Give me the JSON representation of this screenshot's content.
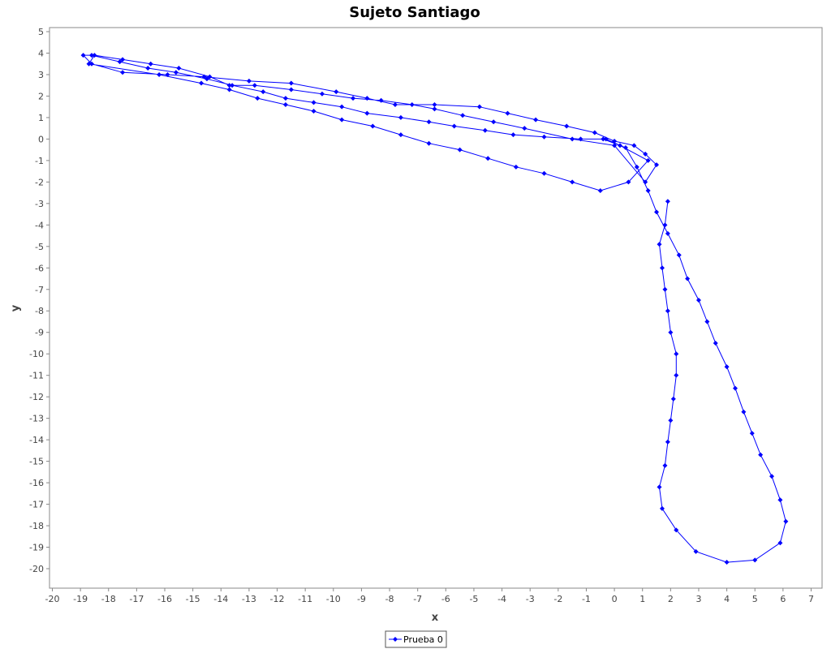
{
  "chart_data": {
    "type": "line",
    "title": "Sujeto Santiago",
    "xlabel": "x",
    "ylabel": "y",
    "xlim": [
      -20,
      7
    ],
    "ylim": [
      -21,
      5
    ],
    "xticks": [
      -20,
      -19,
      -18,
      -17,
      -16,
      -15,
      -14,
      -13,
      -12,
      -11,
      -10,
      -9,
      -8,
      -7,
      -6,
      -5,
      -4,
      -3,
      -2,
      -1,
      0,
      1,
      2,
      3,
      4,
      5,
      6,
      7
    ],
    "yticks": [
      5,
      4,
      3,
      2,
      1,
      0,
      -1,
      -2,
      -3,
      -4,
      -5,
      -6,
      -7,
      -8,
      -9,
      -10,
      -11,
      -12,
      -13,
      -14,
      -15,
      -16,
      -17,
      -18,
      -19,
      -20
    ],
    "grid": false,
    "legend_position": "bottom-center",
    "series": [
      {
        "name": "Prueba 0",
        "color": "#0000ff",
        "marker": "diamond",
        "points": [
          [
            1.9,
            -2.9
          ],
          [
            1.8,
            -4.0
          ],
          [
            1.6,
            -4.9
          ],
          [
            1.7,
            -6.0
          ],
          [
            1.8,
            -7.0
          ],
          [
            1.9,
            -8.0
          ],
          [
            2.0,
            -9.0
          ],
          [
            2.2,
            -10.0
          ],
          [
            2.2,
            -11.0
          ],
          [
            2.1,
            -12.1
          ],
          [
            2.0,
            -13.1
          ],
          [
            1.9,
            -14.1
          ],
          [
            1.8,
            -15.2
          ],
          [
            1.6,
            -16.2
          ],
          [
            1.7,
            -17.2
          ],
          [
            2.2,
            -18.2
          ],
          [
            2.9,
            -19.2
          ],
          [
            4.0,
            -19.7
          ],
          [
            5.0,
            -19.6
          ],
          [
            5.9,
            -18.8
          ],
          [
            6.1,
            -17.8
          ],
          [
            5.9,
            -16.8
          ],
          [
            5.6,
            -15.7
          ],
          [
            5.2,
            -14.7
          ],
          [
            4.9,
            -13.7
          ],
          [
            4.6,
            -12.7
          ],
          [
            4.3,
            -11.6
          ],
          [
            4.0,
            -10.6
          ],
          [
            3.6,
            -9.5
          ],
          [
            3.3,
            -8.5
          ],
          [
            3.0,
            -7.5
          ],
          [
            2.6,
            -6.5
          ],
          [
            2.3,
            -5.4
          ],
          [
            1.9,
            -4.4
          ],
          [
            1.5,
            -3.4
          ],
          [
            1.2,
            -2.4
          ],
          [
            0.8,
            -1.3
          ],
          [
            0.4,
            -0.4
          ],
          [
            -0.4,
            0.0
          ],
          [
            -1.2,
            0.0
          ],
          [
            -2.5,
            0.1
          ],
          [
            -3.6,
            0.2
          ],
          [
            -4.6,
            0.4
          ],
          [
            -5.7,
            0.6
          ],
          [
            -6.6,
            0.8
          ],
          [
            -7.6,
            1.0
          ],
          [
            -8.8,
            1.2
          ],
          [
            -9.7,
            1.5
          ],
          [
            -10.7,
            1.7
          ],
          [
            -11.7,
            1.9
          ],
          [
            -12.5,
            2.2
          ],
          [
            -13.6,
            2.5
          ],
          [
            -14.5,
            2.8
          ],
          [
            -15.6,
            3.1
          ],
          [
            -16.6,
            3.3
          ],
          [
            -17.6,
            3.6
          ],
          [
            -18.6,
            3.9
          ],
          [
            -18.9,
            3.9
          ],
          [
            -18.6,
            3.5
          ],
          [
            -17.5,
            3.1
          ],
          [
            -15.9,
            3.0
          ],
          [
            -14.6,
            2.9
          ],
          [
            -13.0,
            2.7
          ],
          [
            -11.5,
            2.6
          ],
          [
            -9.9,
            2.2
          ],
          [
            -8.8,
            1.9
          ],
          [
            -7.8,
            1.6
          ],
          [
            -6.4,
            1.6
          ],
          [
            -4.8,
            1.5
          ],
          [
            -3.8,
            1.2
          ],
          [
            -2.8,
            0.9
          ],
          [
            -1.7,
            0.6
          ],
          [
            -0.7,
            0.3
          ],
          [
            0.0,
            -0.1
          ],
          [
            0.7,
            -0.3
          ],
          [
            1.1,
            -0.7
          ],
          [
            1.5,
            -1.2
          ],
          [
            1.1,
            -2.0
          ],
          [
            0.0,
            -0.3
          ],
          [
            -1.5,
            0.0
          ],
          [
            -3.2,
            0.5
          ],
          [
            -4.3,
            0.8
          ],
          [
            -5.4,
            1.1
          ],
          [
            -6.4,
            1.4
          ],
          [
            -7.2,
            1.6
          ],
          [
            -8.3,
            1.8
          ],
          [
            -9.3,
            1.9
          ],
          [
            -10.4,
            2.1
          ],
          [
            -11.5,
            2.3
          ],
          [
            -12.8,
            2.5
          ],
          [
            -13.7,
            2.5
          ],
          [
            -14.4,
            2.9
          ],
          [
            -15.5,
            3.3
          ],
          [
            -16.5,
            3.5
          ],
          [
            -17.5,
            3.7
          ],
          [
            -18.5,
            3.9
          ],
          [
            -18.7,
            3.5
          ],
          [
            -16.2,
            3.0
          ],
          [
            -14.7,
            2.6
          ],
          [
            -13.7,
            2.3
          ],
          [
            -12.7,
            1.9
          ],
          [
            -11.7,
            1.6
          ],
          [
            -10.7,
            1.3
          ],
          [
            -9.7,
            0.9
          ],
          [
            -8.6,
            0.6
          ],
          [
            -7.6,
            0.2
          ],
          [
            -6.6,
            -0.2
          ],
          [
            -5.5,
            -0.5
          ],
          [
            -4.5,
            -0.9
          ],
          [
            -3.5,
            -1.3
          ],
          [
            -2.5,
            -1.6
          ],
          [
            -1.5,
            -2.0
          ],
          [
            -0.5,
            -2.4
          ],
          [
            0.5,
            -2.0
          ],
          [
            1.2,
            -1.0
          ],
          [
            0.2,
            -0.3
          ],
          [
            -0.3,
            0.0
          ]
        ]
      }
    ]
  }
}
